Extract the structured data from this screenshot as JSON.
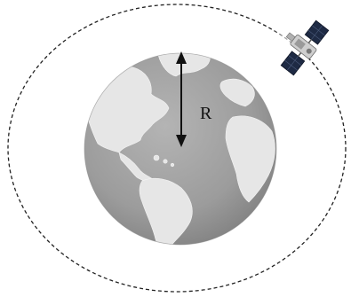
{
  "diagram": {
    "radius_label": "R",
    "colors": {
      "background": "#ffffff",
      "orbit_line": "#222222",
      "ocean": "#9a9a9a",
      "land": "#e6e6e6",
      "arrow": "#111111",
      "satellite_panel": "#1e2a44",
      "satellite_body": "#cfcfcf"
    },
    "icons": [
      "earth-globe-icon",
      "satellite-icon",
      "double-arrow-icon"
    ]
  }
}
